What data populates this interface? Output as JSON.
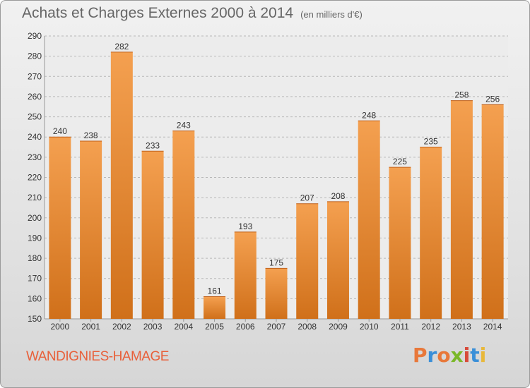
{
  "header": {
    "title": "Achats et Charges Externes 2000 à 2014",
    "unit": "(en milliers d'€)"
  },
  "footer": {
    "commune": "WANDIGNIES-HAMAGE",
    "logo_text": "Proxiti",
    "logo_colors": [
      "#e8783a",
      "#3a8fd8",
      "#e8783a",
      "#7ab828",
      "#d84a3a",
      "#3a8fd8",
      "#e8b83a"
    ]
  },
  "colors": {
    "bar_top": "#f4a050",
    "bar_bottom": "#d0701a",
    "grid": "#b8b8b8",
    "text": "#333333",
    "commune": "#e8603a"
  },
  "chart_data": {
    "type": "bar",
    "title": "Achats et Charges Externes 2000 à 2014",
    "subtitle": "(en milliers d'€)",
    "xlabel": "",
    "ylabel": "",
    "categories": [
      "2000",
      "2001",
      "2002",
      "2003",
      "2004",
      "2005",
      "2006",
      "2007",
      "2008",
      "2009",
      "2010",
      "2011",
      "2012",
      "2013",
      "2014"
    ],
    "values": [
      240,
      238,
      282,
      233,
      243,
      161,
      193,
      175,
      207,
      208,
      248,
      225,
      235,
      258,
      256
    ],
    "ylim": [
      150,
      290
    ],
    "yticks": [
      150,
      160,
      170,
      180,
      190,
      200,
      210,
      220,
      230,
      240,
      250,
      260,
      270,
      280,
      290
    ],
    "grid": true,
    "data_labels": true
  }
}
